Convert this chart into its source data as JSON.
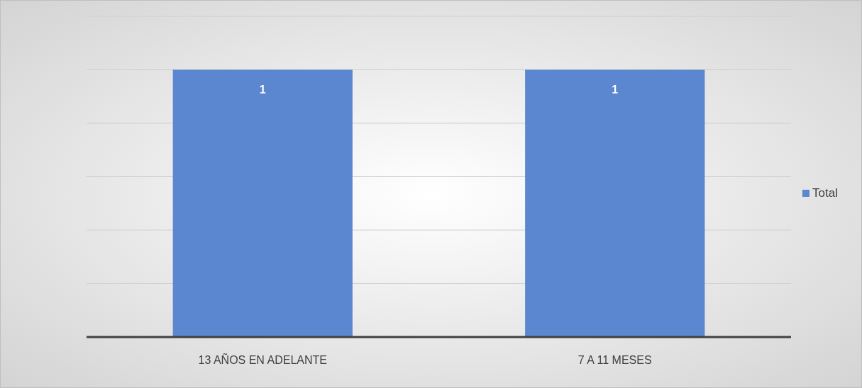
{
  "chart_data": {
    "type": "bar",
    "categories": [
      "13 AÑOS EN ADELANTE",
      "7 A 11 MESES"
    ],
    "series": [
      {
        "name": "Total",
        "color": "#5b86d0",
        "values": [
          1,
          1
        ]
      }
    ],
    "ylim": [
      0,
      1.2
    ],
    "yticks": [
      {
        "value": 0,
        "label": null
      },
      {
        "value": 0.2,
        "label": null
      },
      {
        "value": 0.4,
        "label": null
      },
      {
        "value": 0.6,
        "label": null
      },
      {
        "value": 0.8,
        "label": null
      },
      {
        "value": 1,
        "label": null
      },
      {
        "value": 1.2,
        "label": null
      }
    ],
    "tick_labels": "x",
    "grid": "y",
    "legend": "right",
    "data_labels": true
  }
}
